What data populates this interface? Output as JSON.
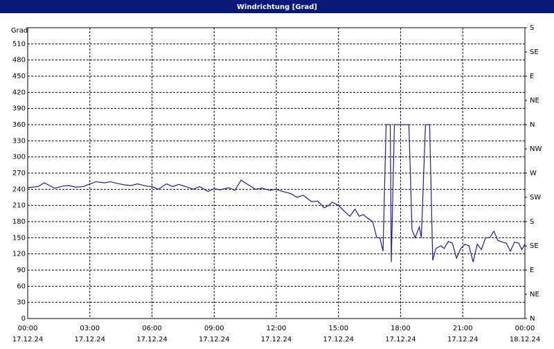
{
  "chart_data": {
    "type": "line",
    "title": "Windrichtung [Grad]",
    "ylabel": "Grad",
    "x": [
      0,
      0.5,
      0.8,
      1.0,
      1.3,
      1.7,
      2.0,
      2.3,
      2.7,
      3.0,
      3.3,
      3.7,
      4.0,
      4.3,
      4.7,
      5.0,
      5.3,
      5.7,
      6.0,
      6.3,
      6.7,
      7.0,
      7.3,
      7.7,
      8.0,
      8.3,
      8.7,
      9.0,
      9.3,
      9.7,
      10.0,
      10.3,
      10.7,
      11.0,
      11.3,
      11.7,
      12.0,
      12.3,
      12.7,
      13.0,
      13.3,
      13.7,
      14.0,
      14.3,
      14.5,
      14.7,
      15.0,
      15.4,
      15.55,
      15.8,
      16.0,
      16.2,
      16.45,
      16.65,
      16.85,
      17.0,
      17.15,
      17.3,
      17.5,
      17.55,
      17.7,
      18.4,
      18.55,
      18.7,
      18.9,
      19.0,
      19.2,
      19.4,
      19.55,
      19.7,
      19.95,
      20.1,
      20.3,
      20.5,
      20.7,
      20.9,
      21.1,
      21.3,
      21.5,
      21.7,
      21.9,
      22.1,
      22.3,
      22.5,
      22.7,
      22.9,
      23.1,
      23.3,
      23.5,
      23.7,
      23.85,
      24.0
    ],
    "series": [
      {
        "name": "Windrichtung",
        "color": "#1a1aa0",
        "values": [
          243,
          245,
          252,
          248,
          242,
          246,
          247,
          244,
          245,
          250,
          254,
          252,
          254,
          251,
          248,
          247,
          250,
          246,
          245,
          240,
          250,
          245,
          249,
          244,
          240,
          245,
          236,
          241,
          239,
          243,
          238,
          257,
          247,
          240,
          242,
          238,
          240,
          236,
          232,
          225,
          229,
          217,
          218,
          206,
          209,
          216,
          210,
          195,
          190,
          203,
          190,
          193,
          185,
          180,
          150,
          150,
          125,
          360,
          360,
          105,
          360,
          360,
          165,
          150,
          170,
          150,
          360,
          360,
          108,
          130,
          135,
          130,
          143,
          140,
          112,
          130,
          138,
          135,
          105,
          138,
          128,
          150,
          150,
          162,
          145,
          142,
          140,
          125,
          142,
          140,
          128,
          138
        ]
      }
    ],
    "xlim": [
      0,
      24
    ],
    "xticks": [
      {
        "value": 0,
        "label": "00:00"
      },
      {
        "value": 3,
        "label": "03:00"
      },
      {
        "value": 6,
        "label": "06:00"
      },
      {
        "value": 9,
        "label": "09:00"
      },
      {
        "value": 12,
        "label": "12:00"
      },
      {
        "value": 15,
        "label": "15:00"
      },
      {
        "value": 18,
        "label": "18:00"
      },
      {
        "value": 21,
        "label": "21:00"
      },
      {
        "value": 24,
        "label": "00:00"
      }
    ],
    "xtick_dates": [
      "17.12.24",
      "17.12.24",
      "17.12.24",
      "17.12.24",
      "17.12.24",
      "17.12.24",
      "17.12.24",
      "17.12.24",
      "18.12.24"
    ],
    "ylim": [
      0,
      540
    ],
    "yticks": [
      0,
      30,
      60,
      90,
      120,
      150,
      180,
      210,
      240,
      270,
      300,
      330,
      360,
      390,
      420,
      450,
      480,
      510
    ],
    "y2lim": [
      0,
      540
    ],
    "y2ticks": [
      {
        "value": 0,
        "label": "N"
      },
      {
        "value": 45,
        "label": "NE"
      },
      {
        "value": 90,
        "label": "E"
      },
      {
        "value": 135,
        "label": "SE"
      },
      {
        "value": 180,
        "label": "S"
      },
      {
        "value": 225,
        "label": "SW"
      },
      {
        "value": 270,
        "label": "W"
      },
      {
        "value": 315,
        "label": "NW"
      },
      {
        "value": 360,
        "label": "N"
      },
      {
        "value": 405,
        "label": "NE"
      },
      {
        "value": 450,
        "label": "E"
      },
      {
        "value": 495,
        "label": "SE"
      },
      {
        "value": 540,
        "label": "S"
      }
    ],
    "grid": true
  }
}
